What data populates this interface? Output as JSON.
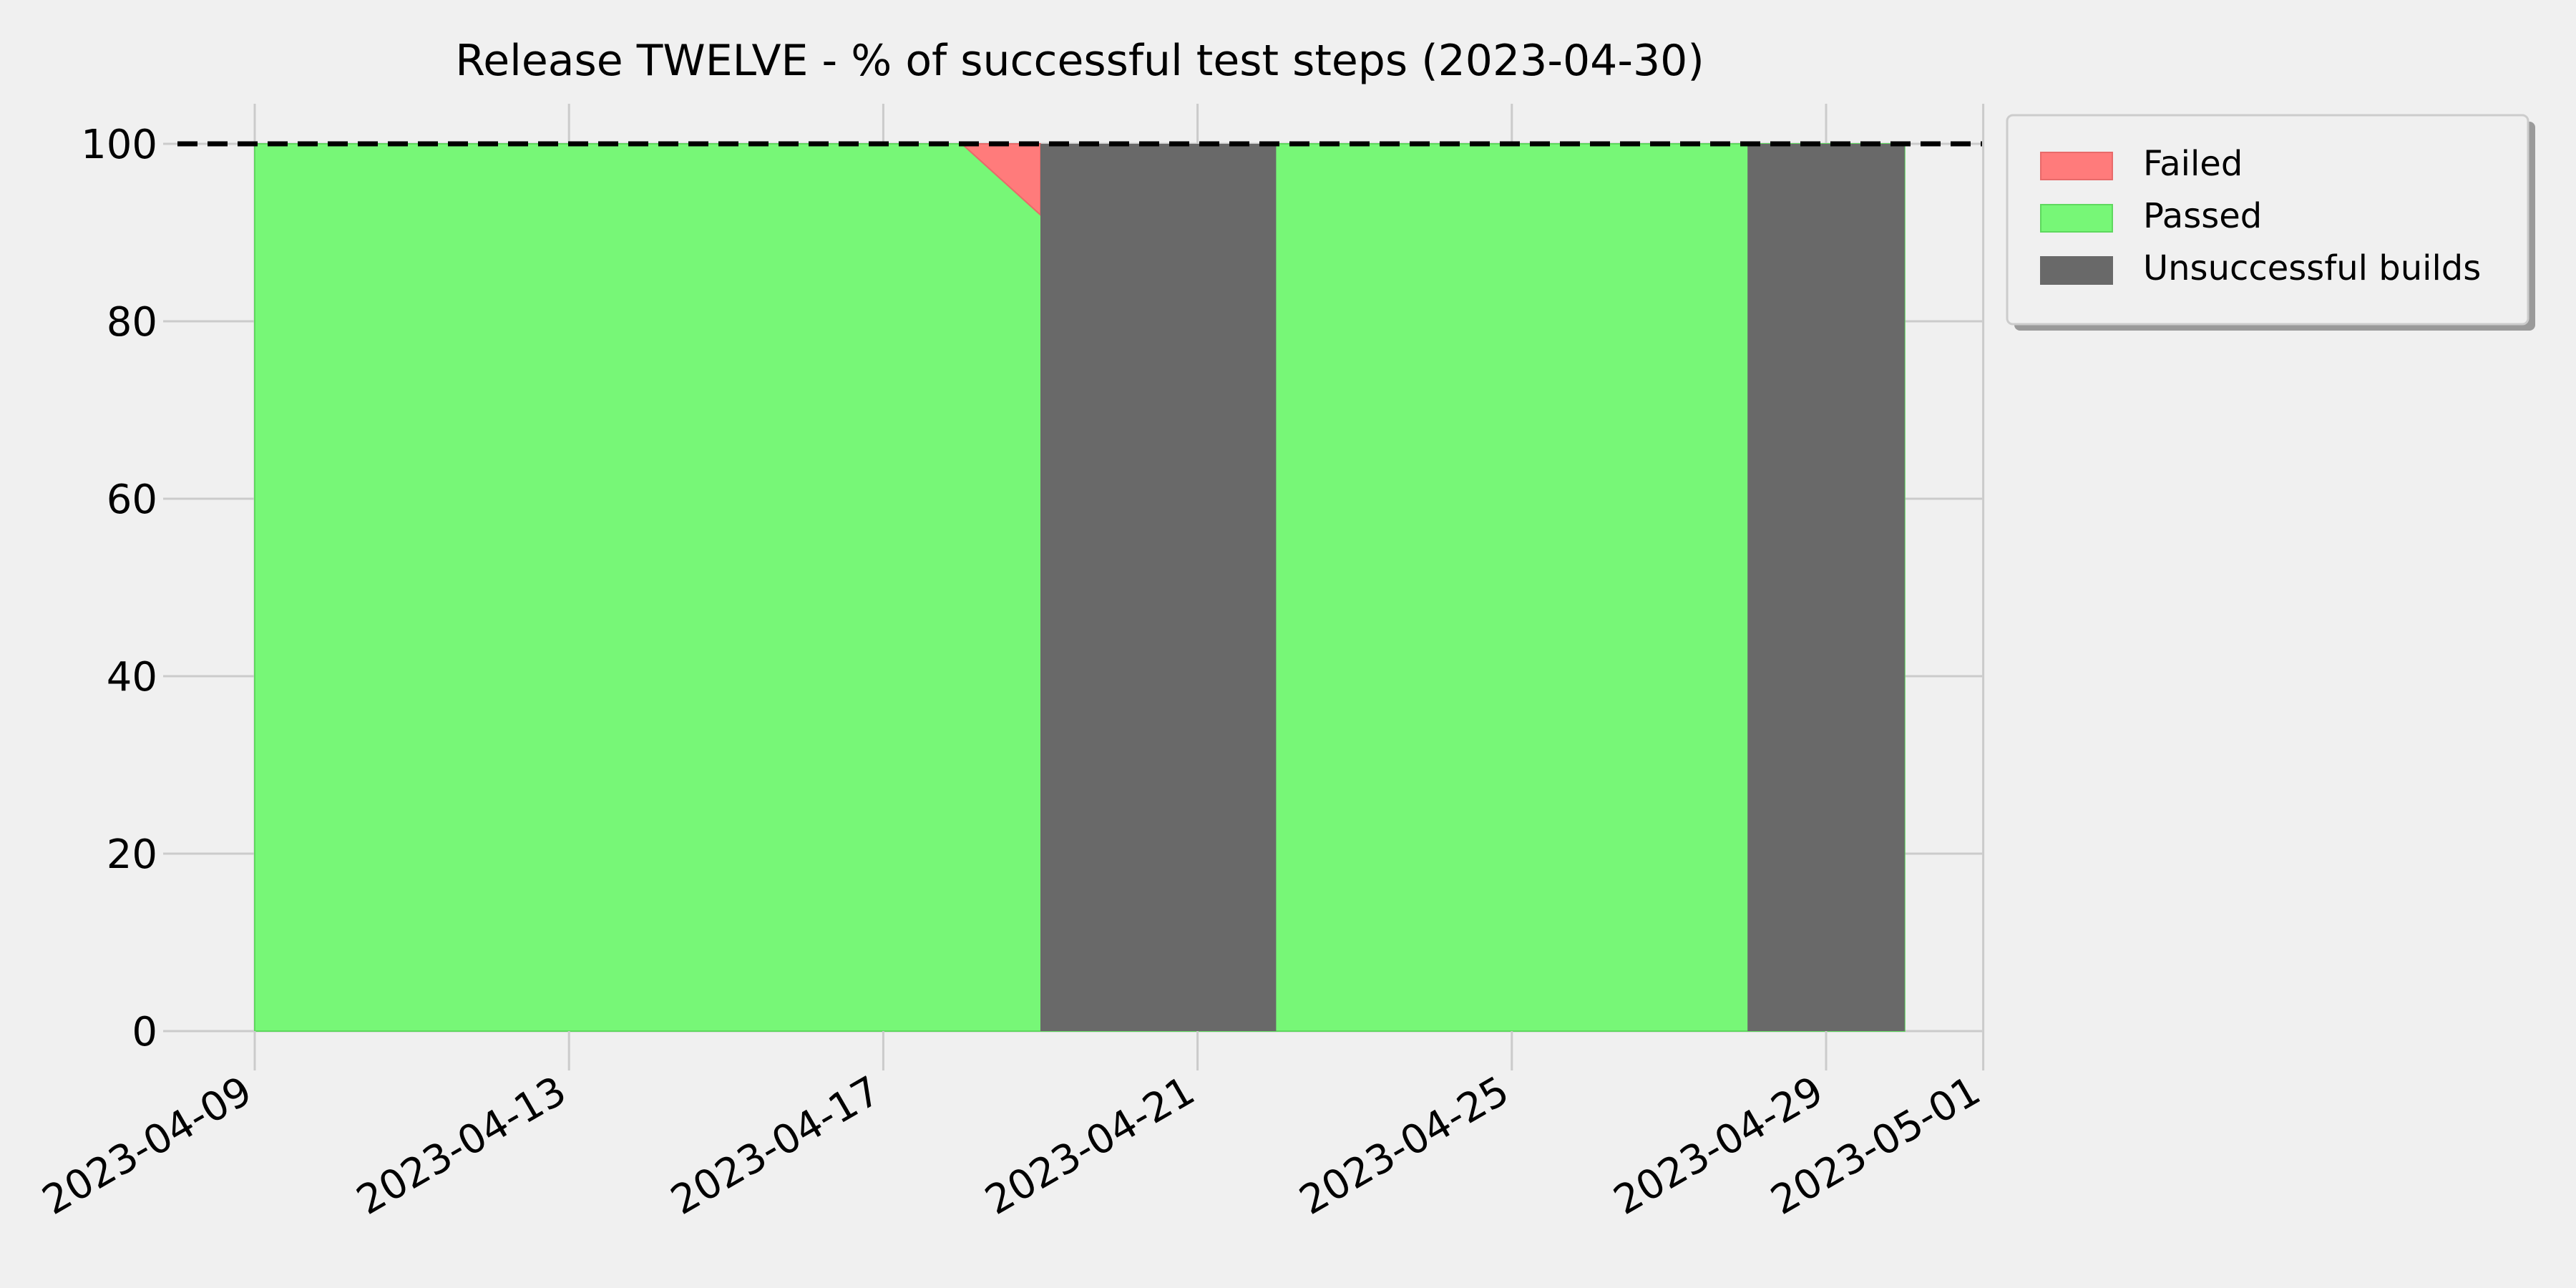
{
  "chart_data": {
    "type": "area",
    "title": "Release TWELVE - % of successful test steps (2023-04-30)",
    "xlabel": "",
    "ylabel": "",
    "x_range": [
      "2023-04-09",
      "2023-05-01"
    ],
    "ylim": [
      0,
      100
    ],
    "x_ticks": [
      "2023-04-09",
      "2023-04-13",
      "2023-04-17",
      "2023-04-21",
      "2023-04-25",
      "2023-04-29",
      "2023-05-01"
    ],
    "y_ticks": [
      0,
      20,
      40,
      60,
      80,
      100
    ],
    "grid": true,
    "legend_position": "outside top-right",
    "reference_line": {
      "y": 100,
      "style": "dashed",
      "color": "#000000"
    },
    "series": [
      {
        "name": "Passed",
        "color": "#77f777",
        "points": [
          {
            "date": "2023-04-09",
            "value": 100
          },
          {
            "date": "2023-04-18",
            "value": 100
          },
          {
            "date": "2023-04-19",
            "value": 92
          },
          {
            "date": "2023-04-22",
            "value": 100
          },
          {
            "date": "2023-04-28",
            "value": 100
          },
          {
            "date": "2023-04-30",
            "value": 100
          }
        ]
      },
      {
        "name": "Failed",
        "color": "#ff7b7b",
        "points": [
          {
            "date": "2023-04-18",
            "value": 0
          },
          {
            "date": "2023-04-19",
            "value": 8
          }
        ]
      },
      {
        "name": "Unsuccessful builds",
        "color": "#696969",
        "intervals": [
          {
            "from": "2023-04-19",
            "to": "2023-04-22"
          },
          {
            "from": "2023-04-28",
            "to": "2023-04-30"
          }
        ]
      }
    ],
    "legend": [
      "Failed",
      "Passed",
      "Unsuccessful builds"
    ]
  }
}
